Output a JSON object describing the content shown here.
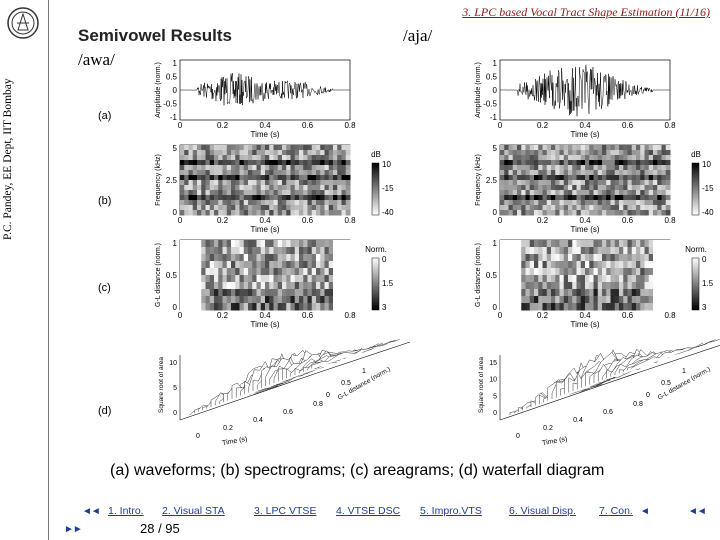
{
  "sidebar": {
    "author": "P.C. Pandey, EE Dept, IIT Bombay"
  },
  "header": {
    "section": "3. LPC based Vocal Tract Shape Estimation (11/16)"
  },
  "slide": {
    "title": "Semivowel Results",
    "left_word": "/awa/",
    "right_word": "/aja/"
  },
  "panel_labels": [
    "(a)",
    "(b)",
    "(c)",
    "(d)"
  ],
  "axes": {
    "waveform": {
      "ylabel": "Amplitude (norm.)",
      "yticks": [
        "1",
        "0.5",
        "0",
        "-0.5",
        "-1"
      ]
    },
    "time": {
      "label": "Time (s)",
      "ticks": [
        "0",
        "0.2",
        "0.4",
        "0.6",
        "0.8"
      ]
    },
    "spectrogram": {
      "ylabel": "Frequency (kHz)",
      "yticks": [
        "5",
        "2.5",
        "0"
      ],
      "cbar_title": "dB",
      "cbar_ticks": [
        "10",
        "-15",
        "-40"
      ]
    },
    "areagram": {
      "ylabel": "G-L distance (norm.)",
      "yticks": [
        "1",
        "0.5",
        "0"
      ],
      "cbar_title": "Norm.",
      "cbar_ticks": [
        "0",
        "1.5",
        "3"
      ]
    },
    "waterfall": {
      "zlabel": "Square root of area",
      "zticks_left": [
        "10",
        "5",
        "0"
      ],
      "zticks_right": [
        "15",
        "10",
        "5",
        "0"
      ],
      "xlabel": "Time (s)",
      "xticks": [
        "0",
        "0.2",
        "0.4",
        "0.6",
        "0.8"
      ],
      "ylabel": "G-L distance (norm.)",
      "yticks": [
        "0",
        "0.5",
        "1"
      ]
    }
  },
  "caption": "(a) waveforms; (b) spectrograms; (c) areagrams; (d) waterfall diagram",
  "nav": {
    "items": [
      "1. Intro.",
      "2. Visual STA",
      "3. LPC VTSE",
      "4. VTSE DSC",
      "5. Impro.VTS",
      "6. Visual Disp.",
      "7. Con."
    ],
    "first": "◄◄",
    "prev": "◄",
    "back": "◄◄",
    "next": "►►",
    "page": "28 / 95"
  },
  "colors": {
    "header": "#8b1a1a",
    "nav": "#1d3f91"
  }
}
